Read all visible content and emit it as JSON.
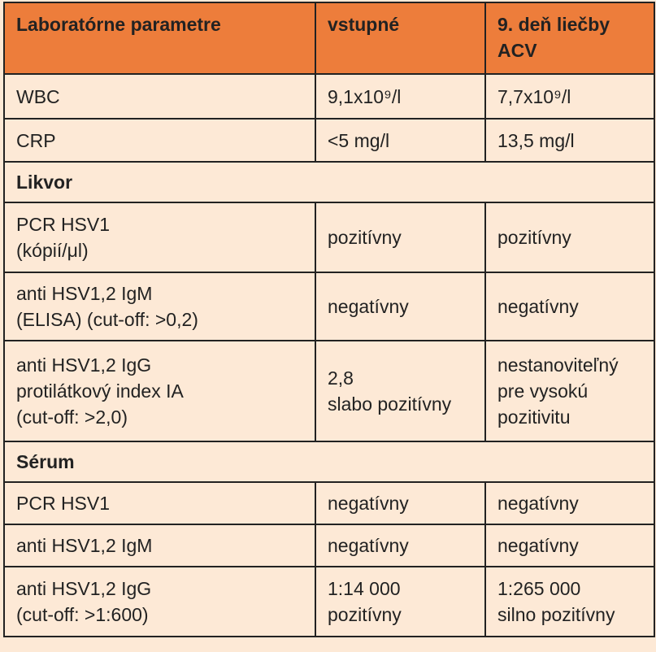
{
  "headers": [
    "Laboratórne parametre",
    "vstupné",
    "9. deň liečby\nACV"
  ],
  "rows_top": [
    {
      "param": "WBC",
      "v1": "9,1x10⁹/l",
      "v2": "7,7x10⁹/l"
    },
    {
      "param": "CRP",
      "v1": "<5 mg/l",
      "v2": "13,5 mg/l"
    }
  ],
  "section_likvor": "Likvor",
  "rows_likvor": [
    {
      "param": "PCR HSV1\n(kópií/μl)",
      "v1": "pozitívny",
      "v2": "pozitívny"
    },
    {
      "param": "anti HSV1,2 IgM\n(ELISA) (cut-off: >0,2)",
      "v1": "negatívny",
      "v2": "negatívny"
    },
    {
      "param": "anti HSV1,2 IgG\nprotilátkový index IA\n(cut-off: >2,0)",
      "v1": "2,8\nslabo pozitívny",
      "v2": "nestanoviteľný\npre vysokú\npozitivitu"
    }
  ],
  "section_serum": "Sérum",
  "rows_serum": [
    {
      "param": "PCR HSV1",
      "v1": "negatívny",
      "v2": "negatívny"
    },
    {
      "param": "anti HSV1,2 IgM",
      "v1": "negatívny",
      "v2": "negatívny"
    },
    {
      "param": "anti HSV1,2 IgG\n(cut-off: >1:600)",
      "v1": "1:14 000\npozitívny",
      "v2": "1:265 000\nsilno pozitívny"
    }
  ]
}
